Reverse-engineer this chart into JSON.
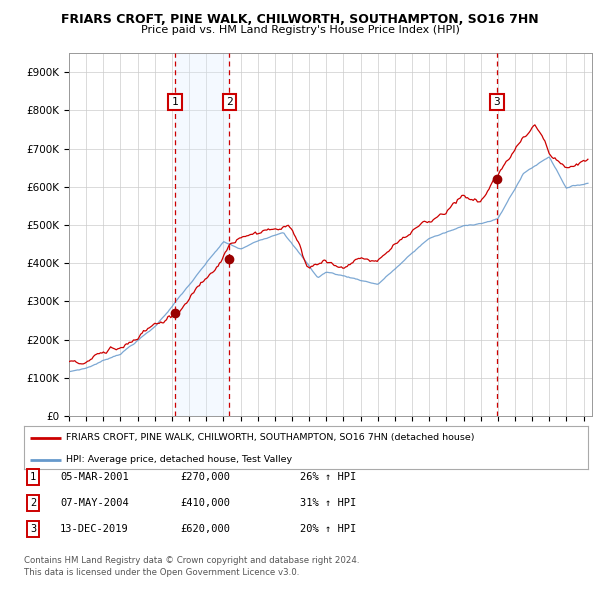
{
  "title1": "FRIARS CROFT, PINE WALK, CHILWORTH, SOUTHAMPTON, SO16 7HN",
  "title2": "Price paid vs. HM Land Registry's House Price Index (HPI)",
  "legend_line1": "FRIARS CROFT, PINE WALK, CHILWORTH, SOUTHAMPTON, SO16 7HN (detached house)",
  "legend_line2": "HPI: Average price, detached house, Test Valley",
  "transactions": [
    {
      "num": 1,
      "date": "05-MAR-2001",
      "price": 270000,
      "pct": "26%",
      "dir": "↑"
    },
    {
      "num": 2,
      "date": "07-MAY-2004",
      "price": 410000,
      "pct": "31%",
      "dir": "↑"
    },
    {
      "num": 3,
      "date": "13-DEC-2019",
      "price": 620000,
      "pct": "20%",
      "dir": "↑"
    }
  ],
  "transaction_dates_decimal": [
    2001.18,
    2004.35,
    2019.95
  ],
  "transaction_prices": [
    270000,
    410000,
    620000
  ],
  "ylim": [
    0,
    950000
  ],
  "yticks": [
    0,
    100000,
    200000,
    300000,
    400000,
    500000,
    600000,
    700000,
    800000,
    900000
  ],
  "ytick_labels": [
    "£0",
    "£100K",
    "£200K",
    "£300K",
    "£400K",
    "£500K",
    "£600K",
    "£700K",
    "£800K",
    "£900K"
  ],
  "xlim_start": 1995.0,
  "xlim_end": 2025.5,
  "red_line_color": "#cc0000",
  "blue_line_color": "#6699cc",
  "shading_color": "#ddeeff",
  "grid_color": "#cccccc",
  "background_color": "#ffffff",
  "footer": "Contains HM Land Registry data © Crown copyright and database right 2024.\nThis data is licensed under the Open Government Licence v3.0.",
  "xtick_years": [
    1995,
    1996,
    1997,
    1998,
    1999,
    2000,
    2001,
    2002,
    2003,
    2004,
    2005,
    2006,
    2007,
    2008,
    2009,
    2010,
    2011,
    2012,
    2013,
    2014,
    2015,
    2016,
    2017,
    2018,
    2019,
    2020,
    2021,
    2022,
    2023,
    2024,
    2025
  ]
}
